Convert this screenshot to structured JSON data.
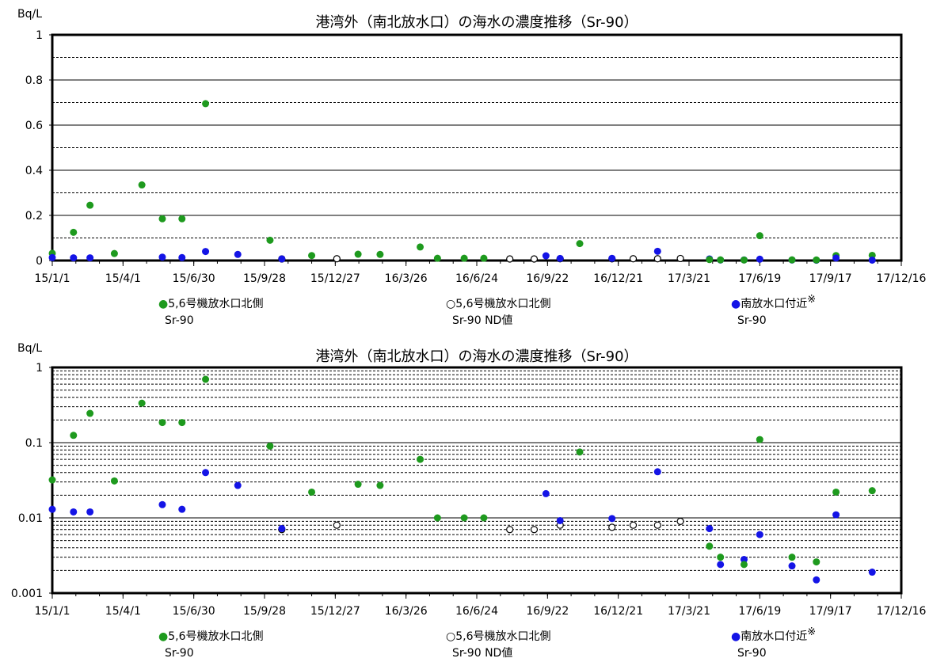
{
  "chart_data": [
    {
      "type": "scatter",
      "title": "港湾外（南北放水口）の海水の濃度推移（Sr-90）",
      "unit": "Bq/L",
      "y_scale": "linear",
      "ylim": [
        0,
        1
      ],
      "y_ticks": [
        "0",
        "0.2",
        "0.4",
        "0.6",
        "0.8",
        "1"
      ],
      "x_ticks": [
        "15/1/1",
        "15/4/1",
        "15/6/30",
        "15/9/28",
        "15/12/27",
        "16/3/26",
        "16/6/24",
        "16/9/22",
        "16/12/21",
        "17/3/21",
        "17/6/19",
        "17/9/17",
        "17/12/16"
      ],
      "legend": [
        {
          "label": "●5,6号機放水口北側",
          "sub": "Sr-90",
          "color": "#1e9a1e"
        },
        {
          "label": "○5,6号機放水口北側",
          "sub": "Sr-90 ND値",
          "color": "#000000"
        },
        {
          "label": "●南放水口付近",
          "sup": "※",
          "sub": "Sr-90",
          "color": "#1414e6"
        }
      ],
      "grid": true,
      "series": [
        {
          "key": "north",
          "style": "filled",
          "color": "#1e9a1e",
          "points": [
            [
              "2015-01-01",
              0.032
            ],
            [
              "2015-01-28",
              0.125
            ],
            [
              "2015-02-18",
              0.245
            ],
            [
              "2015-03-21",
              0.031
            ],
            [
              "2015-04-25",
              0.335
            ],
            [
              "2015-05-21",
              0.185
            ],
            [
              "2015-06-15",
              0.185
            ],
            [
              "2015-07-15",
              0.695
            ],
            [
              "2015-10-05",
              0.09
            ],
            [
              "2015-11-27",
              0.022
            ],
            [
              "2016-01-25",
              0.028
            ],
            [
              "2016-02-22",
              0.027
            ],
            [
              "2016-04-13",
              0.06
            ],
            [
              "2016-05-05",
              0.01
            ],
            [
              "2016-06-08",
              0.01
            ],
            [
              "2016-07-03",
              0.01
            ],
            [
              "2016-11-02",
              0.075
            ],
            [
              "2017-06-19",
              0.11
            ],
            [
              "2017-09-24",
              0.022
            ],
            [
              "2017-11-09",
              0.023
            ]
          ]
        },
        {
          "key": "north_nd",
          "style": "hollow",
          "color": "#000000",
          "points": [
            [
              "2015-10-20",
              0.007
            ],
            [
              "2015-12-29",
              0.008
            ],
            [
              "2016-08-05",
              0.007
            ],
            [
              "2016-09-05",
              0.007
            ],
            [
              "2016-10-08",
              0.008
            ],
            [
              "2016-12-13",
              0.0075
            ],
            [
              "2017-01-09",
              0.008
            ],
            [
              "2017-02-09",
              0.008
            ],
            [
              "2017-03-10",
              0.009
            ]
          ]
        },
        {
          "key": "south",
          "style": "filled",
          "color": "#1414e6",
          "points": [
            [
              "2015-01-01",
              0.013
            ],
            [
              "2015-01-28",
              0.012
            ],
            [
              "2015-02-18",
              0.012
            ],
            [
              "2015-05-21",
              0.015
            ],
            [
              "2015-06-15",
              0.013
            ],
            [
              "2015-07-15",
              0.04
            ],
            [
              "2015-08-25",
              0.027
            ],
            [
              "2015-10-20",
              0.0072
            ],
            [
              "2016-09-20",
              0.021
            ],
            [
              "2016-10-08",
              0.0092
            ],
            [
              "2016-12-13",
              0.0098
            ],
            [
              "2017-02-09",
              0.041
            ],
            [
              "2017-04-16",
              0.0072
            ],
            [
              "2017-04-30",
              0.0024
            ],
            [
              "2017-05-30",
              0.0028
            ],
            [
              "2017-06-19",
              0.006
            ],
            [
              "2017-07-30",
              0.0023
            ],
            [
              "2017-08-30",
              0.0015
            ],
            [
              "2017-09-24",
              0.011
            ],
            [
              "2017-11-09",
              0.0019
            ]
          ]
        },
        {
          "key": "north_low",
          "style": "filled",
          "color": "#1e9a1e",
          "points": [
            [
              "2017-04-16",
              0.0042
            ],
            [
              "2017-04-30",
              0.003
            ],
            [
              "2017-05-30",
              0.0024
            ],
            [
              "2017-07-30",
              0.003
            ],
            [
              "2017-08-30",
              0.0026
            ]
          ]
        }
      ]
    },
    {
      "type": "scatter",
      "title": "港湾外（南北放水口）の海水の濃度推移（Sr-90）",
      "unit": "Bq/L",
      "y_scale": "log",
      "ylim": [
        0.001,
        1
      ],
      "y_ticks": [
        "0.001",
        "0.01",
        "0.1",
        "1"
      ],
      "x_ticks": [
        "15/1/1",
        "15/4/1",
        "15/6/30",
        "15/9/28",
        "15/12/27",
        "16/3/26",
        "16/6/24",
        "16/9/22",
        "16/12/21",
        "17/3/21",
        "17/6/19",
        "17/9/17",
        "17/12/16"
      ],
      "legend": [
        {
          "label": "●5,6号機放水口北側",
          "sub": "Sr-90",
          "color": "#1e9a1e"
        },
        {
          "label": "○5,6号機放水口北側",
          "sub": "Sr-90 ND値",
          "color": "#000000"
        },
        {
          "label": "●南放水口付近",
          "sup": "※",
          "sub": "Sr-90",
          "color": "#1414e6"
        }
      ],
      "grid": true
    }
  ]
}
